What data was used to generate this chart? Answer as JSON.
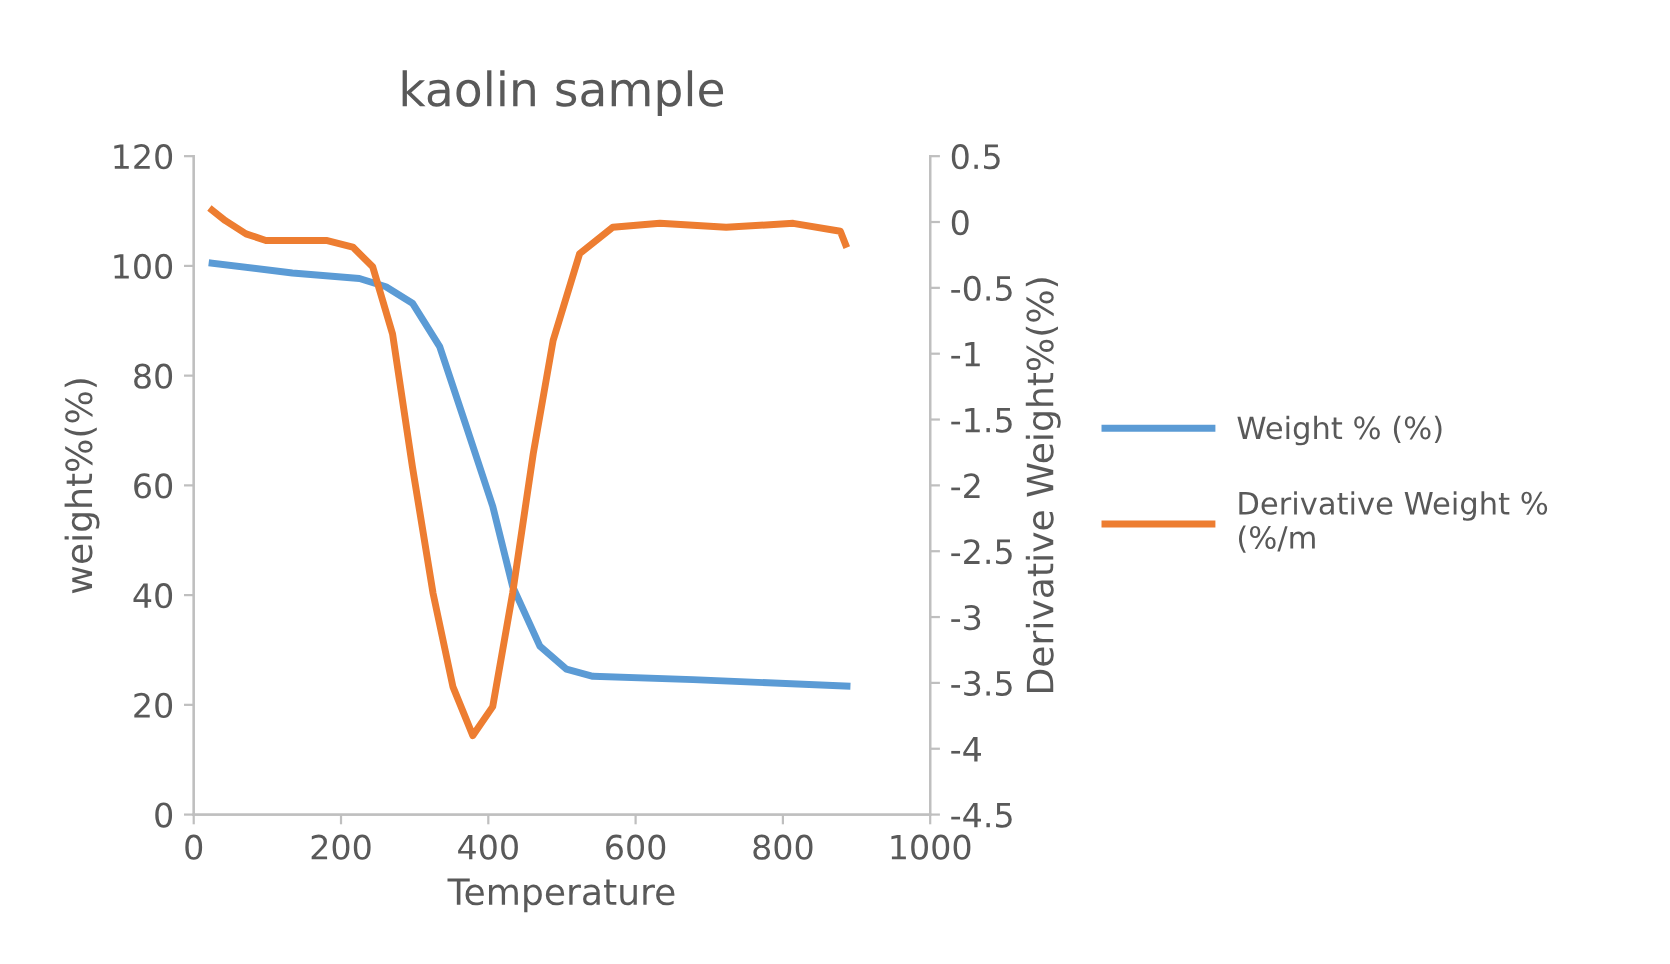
{
  "chart_data": {
    "type": "line",
    "title": "kaolin sample",
    "xlabel": "Temperature",
    "ylabel": "weight%(%)",
    "y2label": "Derivative Weight%(%)",
    "xlim": [
      0,
      1000
    ],
    "xticks": [
      0,
      200,
      400,
      600,
      800,
      1000
    ],
    "ylim": [
      0,
      120
    ],
    "yticks": [
      0,
      20,
      40,
      60,
      80,
      100,
      120
    ],
    "y2lim": [
      -4.5,
      0.5
    ],
    "y2ticks": [
      -4.5,
      -4,
      -3.5,
      -3,
      -2.5,
      -2,
      -1.5,
      -1,
      -0.5,
      0,
      0.5
    ],
    "grid": false,
    "legend": "right",
    "marker": "none",
    "line_style": "solid",
    "series": [
      {
        "name": "Weight % (%)",
        "color": "#5b9bd5",
        "x": [
          25,
          134,
          225,
          261,
          297,
          334,
          370,
          406,
          433,
          470,
          506,
          542,
          678,
          887
        ],
        "values": [
          100.5,
          98.7,
          97.7,
          96.2,
          93.2,
          85.3,
          70.8,
          56.2,
          41.6,
          30.7,
          26.5,
          25.2,
          24.6,
          23.4
        ]
      },
      {
        "name": "Derivative Weight % (%/m",
        "color": "#ed7d31",
        "axis": "y2",
        "x": [
          25,
          43,
          71,
          98,
          180,
          216,
          243,
          270,
          297,
          325,
          352,
          379,
          406,
          433,
          461,
          488,
          524,
          569,
          633,
          723,
          814,
          878,
          885
        ],
        "values": [
          0.09,
          0.01,
          -0.09,
          -0.14,
          -0.14,
          -0.19,
          -0.34,
          -0.85,
          -1.86,
          -2.82,
          -3.53,
          -3.9,
          -3.68,
          -2.82,
          -1.76,
          -0.9,
          -0.24,
          -0.04,
          -0.01,
          -0.04,
          -0.01,
          -0.07,
          -0.17
        ]
      }
    ]
  }
}
